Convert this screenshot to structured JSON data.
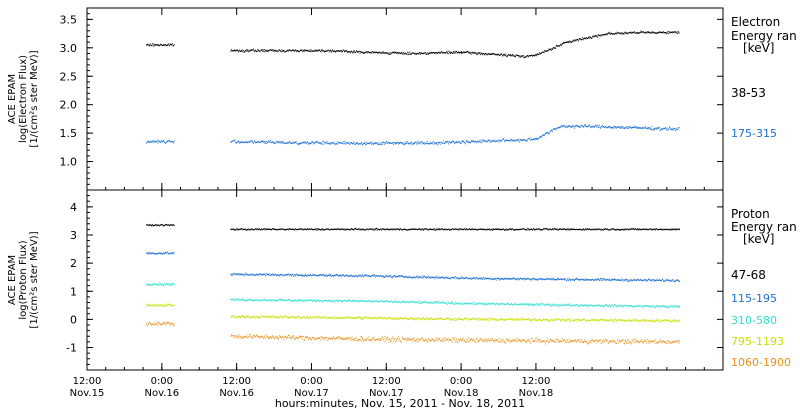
{
  "chart_data": [
    {
      "type": "scatter",
      "panel": "electron",
      "ylabel_lines": [
        "ACE EPAM",
        "log(Electron Flux)",
        "[1/(cm²s ster MeV)]"
      ],
      "ylim": [
        0.5,
        3.7
      ],
      "yticks": [
        "1.0",
        "1.5",
        "2.0",
        "2.5",
        "3.0",
        "3.5"
      ],
      "ytick_values": [
        1.0,
        1.5,
        2.0,
        2.5,
        3.0,
        3.5
      ],
      "legend_title": [
        "Electron",
        "Energy ran",
        "[keV]"
      ],
      "series": [
        {
          "name": "38-53",
          "color": "#000000",
          "segments": [
            {
              "x": [
                -14.5,
                -10.0
              ],
              "y": [
                3.05,
                3.05
              ]
            },
            {
              "x": [
                -1.0,
                15.0,
                20.5,
                28.0,
                36.0,
                46.0,
                48.0,
                53.0,
                59.5,
                66.0,
                71.0
              ],
              "y": [
                2.95,
                2.95,
                2.92,
                2.9,
                2.92,
                2.85,
                2.87,
                3.1,
                3.25,
                3.27,
                3.27
              ]
            }
          ],
          "jitter": 0.03
        },
        {
          "name": "175-315",
          "color": "#1a6fd0",
          "segments": [
            {
              "x": [
                -14.5,
                -10.0
              ],
              "y": [
                1.35,
                1.35
              ]
            },
            {
              "x": [
                -1.0,
                10.0,
                20.0,
                32.0,
                46.0,
                48.0,
                52.0,
                56.0,
                71.0
              ],
              "y": [
                1.35,
                1.33,
                1.32,
                1.33,
                1.38,
                1.4,
                1.62,
                1.62,
                1.57
              ]
            }
          ],
          "jitter": 0.04
        }
      ]
    },
    {
      "type": "scatter",
      "panel": "proton",
      "ylabel_lines": [
        "ACE EPAM",
        "log(Proton Flux)",
        "[1/(cm²s ster MeV)]"
      ],
      "ylim": [
        -1.8,
        4.6
      ],
      "yticks": [
        "-1",
        "0",
        "1",
        "2",
        "3",
        "4"
      ],
      "ytick_values": [
        -1,
        0,
        1,
        2,
        3,
        4
      ],
      "legend_title": [
        "Proton",
        "Energy ran",
        "[keV]"
      ],
      "series": [
        {
          "name": "47-68",
          "color": "#000000",
          "segments": [
            {
              "x": [
                -14.5,
                -10.0
              ],
              "y": [
                3.35,
                3.35
              ]
            },
            {
              "x": [
                -1.0,
                71.0
              ],
              "y": [
                3.2,
                3.2
              ]
            }
          ],
          "jitter": 0.04
        },
        {
          "name": "115-195",
          "color": "#1a6fd0",
          "segments": [
            {
              "x": [
                -14.5,
                -10.0
              ],
              "y": [
                2.35,
                2.35
              ]
            },
            {
              "x": [
                -1.0,
                20.0,
                40.0,
                71.0
              ],
              "y": [
                1.6,
                1.55,
                1.45,
                1.38
              ]
            }
          ],
          "jitter": 0.06
        },
        {
          "name": "310-580",
          "color": "#2fe0d0",
          "segments": [
            {
              "x": [
                -14.5,
                -10.0
              ],
              "y": [
                1.25,
                1.25
              ]
            },
            {
              "x": [
                -1.0,
                20.0,
                40.0,
                71.0
              ],
              "y": [
                0.7,
                0.65,
                0.55,
                0.45
              ]
            }
          ],
          "jitter": 0.06
        },
        {
          "name": "795-1193",
          "color": "#c8e000",
          "segments": [
            {
              "x": [
                -14.5,
                -10.0
              ],
              "y": [
                0.5,
                0.5
              ]
            },
            {
              "x": [
                -1.0,
                20.0,
                40.0,
                71.0
              ],
              "y": [
                0.1,
                0.05,
                0.0,
                -0.05
              ]
            }
          ],
          "jitter": 0.07
        },
        {
          "name": "1060-1900",
          "color": "#e8901a",
          "segments": [
            {
              "x": [
                -14.5,
                -10.0
              ],
              "y": [
                -0.15,
                -0.15
              ]
            },
            {
              "x": [
                -1.0,
                20.0,
                40.0,
                71.0
              ],
              "y": [
                -0.6,
                -0.7,
                -0.75,
                -0.8
              ]
            }
          ],
          "jitter": 0.12
        }
      ]
    }
  ],
  "x_axis": {
    "xlim": [
      -24,
      78
    ],
    "ticks": [
      {
        "x": -24,
        "time": "12:00",
        "date": "Nov.15"
      },
      {
        "x": -12,
        "time": "0:00",
        "date": "Nov.16"
      },
      {
        "x": 0,
        "time": "12:00",
        "date": "Nov.16"
      },
      {
        "x": 12,
        "time": "0:00",
        "date": "Nov.17"
      },
      {
        "x": 24,
        "time": "12:00",
        "date": "Nov.17"
      },
      {
        "x": 36,
        "time": "0:00",
        "date": "Nov.18"
      },
      {
        "x": 48,
        "time": "12:00",
        "date": "Nov.18"
      }
    ],
    "xlabel": "hours:minutes, Nov. 15, 2011 - Nov. 18, 2011"
  }
}
